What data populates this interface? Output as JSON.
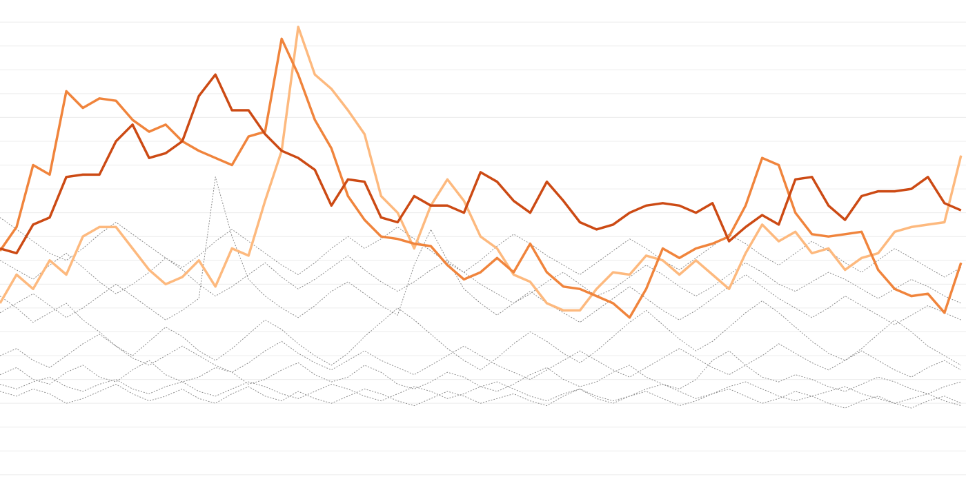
{
  "chart_data": {
    "type": "line",
    "x": [
      0,
      1,
      2,
      3,
      4,
      5,
      6,
      7,
      8,
      9,
      10,
      11,
      12,
      13,
      14,
      15,
      16,
      17,
      18,
      19,
      20,
      21,
      22,
      23,
      24,
      25,
      26,
      27,
      28,
      29,
      30,
      31,
      32,
      33,
      34,
      35,
      36,
      37,
      38,
      39,
      40,
      41,
      42,
      43,
      44,
      45,
      46,
      47,
      48,
      49,
      50,
      51,
      52,
      53,
      54,
      55,
      56,
      57,
      58
    ],
    "xlim": [
      0,
      58.3
    ],
    "ylim": [
      -0.64,
      19.93
    ],
    "yticks": [
      0,
      1,
      2,
      3,
      4,
      5,
      6,
      7,
      8,
      9,
      10,
      11,
      12,
      13,
      14,
      15,
      16,
      17,
      18,
      19
    ],
    "grid": true,
    "series": [
      {
        "color": "#8a8a8a",
        "dashed": true,
        "values": [
          3.5,
          3.3,
          3.6,
          3.4,
          3.0,
          3.2,
          3.5,
          3.8,
          3.4,
          3.1,
          3.3,
          3.6,
          3.2,
          3.0,
          3.4,
          3.7,
          3.3,
          3.1,
          3.5,
          3.2,
          3.0,
          3.3,
          3.6,
          3.4,
          3.1,
          2.9,
          3.2,
          3.5,
          3.3,
          3.0,
          3.2,
          3.4,
          3.1,
          2.9,
          3.3,
          3.6,
          3.2,
          3.0,
          3.3,
          3.5,
          3.2,
          2.9,
          3.1,
          3.4,
          3.6,
          3.3,
          3.0,
          3.2,
          3.5,
          3.3,
          3.0,
          2.8,
          3.1,
          3.3,
          3.0,
          2.8,
          3.1,
          3.3,
          3.0
        ]
      },
      {
        "color": "#8a8a8a",
        "dashed": true,
        "values": [
          4.2,
          4.5,
          4.0,
          3.8,
          4.3,
          4.6,
          4.1,
          3.9,
          4.4,
          4.8,
          4.2,
          3.9,
          4.1,
          4.5,
          4.3,
          3.8,
          4.0,
          4.4,
          4.7,
          4.2,
          3.9,
          4.1,
          4.6,
          4.3,
          3.8,
          3.6,
          3.9,
          4.3,
          4.1,
          3.7,
          3.5,
          3.8,
          4.2,
          4.5,
          4.0,
          3.7,
          3.9,
          4.3,
          4.6,
          4.1,
          3.8,
          3.6,
          4.0,
          4.8,
          5.2,
          4.6,
          4.1,
          3.9,
          4.2,
          4.0,
          3.7,
          3.5,
          3.8,
          4.1,
          3.9,
          3.6,
          3.4,
          3.7,
          3.9
        ]
      },
      {
        "color": "#8a8a8a",
        "dashed": true,
        "values": [
          7.5,
          7.0,
          6.4,
          6.8,
          7.2,
          6.5,
          6.0,
          5.4,
          5.0,
          5.6,
          6.2,
          5.8,
          5.2,
          4.8,
          5.3,
          5.9,
          6.5,
          6.1,
          5.5,
          5.0,
          4.6,
          5.1,
          5.8,
          6.4,
          7.0,
          6.5,
          5.9,
          5.3,
          4.8,
          4.4,
          4.9,
          5.5,
          6.0,
          5.6,
          5.1,
          4.7,
          5.2,
          5.8,
          6.4,
          6.9,
          6.3,
          5.7,
          5.2,
          5.6,
          6.2,
          6.8,
          7.3,
          6.8,
          6.2,
          5.6,
          5.1,
          4.8,
          5.3,
          5.9,
          6.5,
          6.0,
          5.4,
          5.0,
          4.6
        ]
      },
      {
        "color": "#8a8a8a",
        "dashed": true,
        "values": [
          9.0,
          8.6,
          8.2,
          8.8,
          9.3,
          8.7,
          8.1,
          7.6,
          8.0,
          8.5,
          9.1,
          8.6,
          8.0,
          7.5,
          7.9,
          8.4,
          8.9,
          8.3,
          7.8,
          8.2,
          8.7,
          9.2,
          8.6,
          8.1,
          7.7,
          8.1,
          8.6,
          9.0,
          8.5,
          8.0,
          7.6,
          7.2,
          7.6,
          8.1,
          8.5,
          8.0,
          7.5,
          7.8,
          8.3,
          8.8,
          8.4,
          7.9,
          7.5,
          7.9,
          8.4,
          8.9,
          8.5,
          8.0,
          7.7,
          8.1,
          8.5,
          8.2,
          7.8,
          7.4,
          7.8,
          8.2,
          7.9,
          7.5,
          7.2
        ]
      },
      {
        "color": "#8a8a8a",
        "dashed": true,
        "values": [
          6.8,
          7.2,
          7.6,
          7.1,
          6.6,
          7.0,
          7.5,
          8.0,
          7.5,
          7.0,
          6.5,
          6.9,
          7.4,
          12.5,
          10.0,
          8.2,
          7.5,
          7.0,
          6.6,
          7.1,
          7.7,
          8.1,
          7.6,
          7.1,
          6.7,
          8.8,
          10.3,
          9.0,
          7.8,
          7.2,
          6.7,
          7.2,
          7.7,
          7.2,
          6.8,
          6.4,
          6.9,
          7.4,
          7.9,
          7.4,
          6.9,
          6.5,
          6.9,
          7.4,
          7.9,
          8.4,
          7.9,
          7.4,
          7.0,
          6.6,
          7.0,
          7.5,
          7.1,
          6.7,
          6.3,
          6.7,
          7.1,
          6.8,
          6.5
        ]
      },
      {
        "color": "#8a8a8a",
        "dashed": true,
        "values": [
          5.0,
          5.3,
          4.8,
          4.5,
          5.0,
          5.5,
          5.9,
          5.4,
          4.9,
          4.6,
          5.0,
          5.4,
          5.0,
          4.6,
          4.3,
          4.7,
          5.2,
          5.6,
          5.1,
          4.7,
          4.4,
          4.8,
          5.2,
          4.8,
          4.5,
          4.2,
          4.6,
          5.0,
          5.4,
          5.0,
          4.6,
          4.3,
          4.0,
          4.4,
          4.8,
          5.2,
          4.8,
          4.4,
          4.1,
          4.5,
          4.9,
          5.3,
          4.9,
          4.5,
          4.2,
          4.6,
          5.0,
          5.5,
          5.1,
          4.7,
          4.4,
          4.8,
          5.2,
          4.8,
          4.4,
          4.1,
          4.5,
          4.8,
          4.4
        ]
      },
      {
        "color": "#8a8a8a",
        "dashed": true,
        "values": [
          3.8,
          3.6,
          3.9,
          4.1,
          3.7,
          3.5,
          3.8,
          4.0,
          3.6,
          3.4,
          3.7,
          3.9,
          3.5,
          3.3,
          3.6,
          3.9,
          3.7,
          3.4,
          3.2,
          3.5,
          3.8,
          3.6,
          3.3,
          3.1,
          3.4,
          3.7,
          3.5,
          3.2,
          3.4,
          3.7,
          3.9,
          3.6,
          3.3,
          3.1,
          3.4,
          3.6,
          3.3,
          3.1,
          3.3,
          3.6,
          3.8,
          3.5,
          3.2,
          3.4,
          3.7,
          3.9,
          3.6,
          3.3,
          3.1,
          3.3,
          3.5,
          3.7,
          3.4,
          3.2,
          3.0,
          3.2,
          3.4,
          3.1,
          2.9
        ]
      },
      {
        "color": "#8a8a8a",
        "dashed": true,
        "values": [
          10.8,
          10.3,
          9.8,
          9.3,
          9.0,
          9.5,
          10.1,
          10.6,
          10.1,
          9.6,
          9.1,
          8.7,
          9.2,
          9.8,
          10.3,
          9.8,
          9.3,
          8.8,
          8.4,
          8.9,
          9.5,
          10.0,
          9.5,
          9.9,
          10.4,
          9.9,
          9.4,
          8.9,
          8.5,
          9.0,
          9.6,
          10.1,
          9.7,
          9.2,
          8.8,
          8.4,
          8.9,
          9.4,
          9.9,
          9.5,
          9.0,
          8.6,
          9.1,
          9.6,
          10.1,
          9.7,
          9.2,
          8.8,
          9.3,
          9.8,
          9.4,
          8.9,
          8.5,
          9.0,
          9.5,
          9.1,
          8.7,
          8.3,
          8.7
        ]
      },
      {
        "color": "#fdb97e",
        "dashed": false,
        "values": [
          7.2,
          8.4,
          7.8,
          9.0,
          8.4,
          10.0,
          10.4,
          10.4,
          9.5,
          8.6,
          8.0,
          8.3,
          9.0,
          7.9,
          9.5,
          9.2,
          11.5,
          13.6,
          18.8,
          16.8,
          16.2,
          15.3,
          14.3,
          11.7,
          11.0,
          9.5,
          11.3,
          12.4,
          11.5,
          10.0,
          9.5,
          8.4,
          8.1,
          7.2,
          6.9,
          6.9,
          7.8,
          8.5,
          8.4,
          9.2,
          9.0,
          8.4,
          9.0,
          8.4,
          7.8,
          9.3,
          10.5,
          9.8,
          10.2,
          9.3,
          9.5,
          8.6,
          9.1,
          9.3,
          10.2,
          10.4,
          10.5,
          10.6,
          13.4
        ]
      },
      {
        "color": "#f0843c",
        "dashed": false,
        "values": [
          9.4,
          10.4,
          13.0,
          12.6,
          16.1,
          15.4,
          15.8,
          15.7,
          14.9,
          14.4,
          14.7,
          14.0,
          13.6,
          13.3,
          13.0,
          14.2,
          14.4,
          18.3,
          16.8,
          14.9,
          13.7,
          11.7,
          10.7,
          10.0,
          9.9,
          9.7,
          9.6,
          8.8,
          8.2,
          8.5,
          9.1,
          8.5,
          9.7,
          8.5,
          7.9,
          7.8,
          7.5,
          7.2,
          6.6,
          7.8,
          9.5,
          9.1,
          9.5,
          9.7,
          10.0,
          11.3,
          13.3,
          13.0,
          11.0,
          10.1,
          10.0,
          10.1,
          10.2,
          8.6,
          7.8,
          7.5,
          7.6,
          6.8,
          8.9
        ]
      },
      {
        "color": "#cc4a14",
        "dashed": false,
        "values": [
          9.5,
          9.3,
          10.5,
          10.8,
          12.5,
          12.6,
          12.6,
          14.0,
          14.7,
          13.3,
          13.5,
          14.0,
          15.9,
          16.8,
          15.3,
          15.3,
          14.3,
          13.6,
          13.3,
          12.8,
          11.3,
          12.4,
          12.3,
          10.8,
          10.6,
          11.7,
          11.3,
          11.3,
          11.0,
          12.7,
          12.3,
          11.5,
          11.0,
          12.3,
          11.5,
          10.6,
          10.3,
          10.5,
          11.0,
          11.3,
          11.4,
          11.3,
          11.0,
          11.4,
          9.8,
          10.4,
          10.9,
          10.5,
          12.4,
          12.5,
          11.3,
          10.7,
          11.7,
          11.9,
          11.9,
          12.0,
          12.5,
          11.4,
          11.1
        ]
      }
    ]
  }
}
